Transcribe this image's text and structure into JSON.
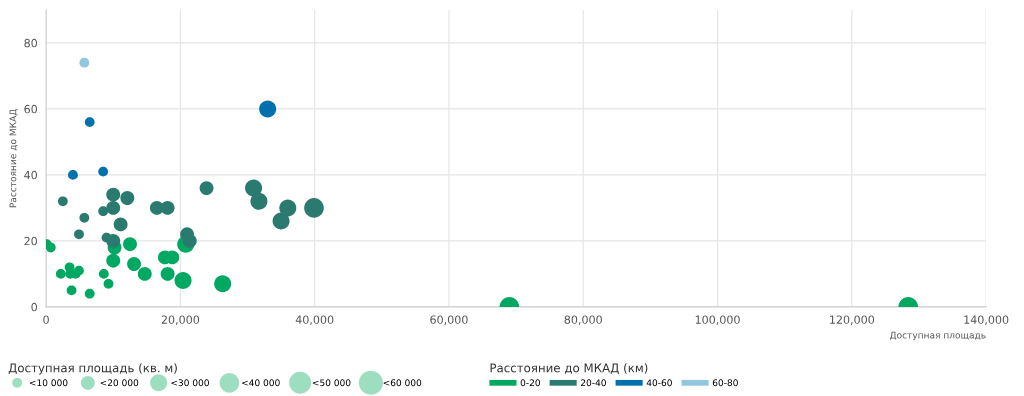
{
  "chart_data": {
    "type": "bubble",
    "xlabel": "Доступная площадь",
    "ylabel": "Расстояние до МКАД",
    "xlim": [
      0,
      140000
    ],
    "xticks": [
      {
        "value": 0,
        "label": "0"
      },
      {
        "value": 20000,
        "label": "20,000"
      },
      {
        "value": 40000,
        "label": "40,000"
      },
      {
        "value": 60000,
        "label": "60,000"
      },
      {
        "value": 80000,
        "label": "80,000"
      },
      {
        "value": 100000,
        "label": "100,000"
      },
      {
        "value": 120000,
        "label": "120,000"
      },
      {
        "value": 140000,
        "label": "140,000"
      }
    ],
    "ylim": [
      0,
      90
    ],
    "yticks": [
      0,
      20,
      40,
      60,
      80
    ],
    "grid": true,
    "legend": "bottom",
    "legend_title": "Расстояние до МКАД (км)",
    "annotations": [
      "Доступная площадь (кв. м)"
    ],
    "size_legend": [
      {
        "value": 10000,
        "label": "<10 000"
      },
      {
        "value": 20000,
        "label": "<20 000"
      },
      {
        "value": 30000,
        "label": "<30 000"
      },
      {
        "value": 40000,
        "label": "<40 000"
      },
      {
        "value": 50000,
        "label": "<50 000"
      },
      {
        "value": 60000,
        "label": "<60 000"
      }
    ],
    "series": [
      {
        "name": "0-20",
        "color": "#00a862",
        "x": [
          100,
          700,
          2200,
          3500,
          3600,
          4400,
          4900,
          3800,
          6500,
          8600,
          9300,
          10200,
          10000,
          12500,
          13100,
          14700,
          17700,
          18800,
          18100,
          20400,
          20800,
          26300,
          69000,
          128400
        ],
        "values": [
          19,
          18,
          10,
          12,
          10,
          10,
          11,
          5,
          4,
          10,
          7,
          18,
          14,
          19,
          13,
          10,
          15,
          15,
          10,
          8,
          19,
          7,
          0,
          0
        ],
        "sizes": [
          10000,
          10000,
          10000,
          10000,
          10000,
          10000,
          10000,
          10000,
          10000,
          10000,
          10000,
          20000,
          20000,
          20000,
          20000,
          20000,
          20000,
          20000,
          20000,
          30000,
          30000,
          30000,
          40000,
          40000
        ]
      },
      {
        "name": "20-40",
        "color": "#2a7a70",
        "x": [
          2500,
          5700,
          4900,
          8500,
          9000,
          10000,
          10000,
          10000,
          11100,
          12100,
          16500,
          18100,
          21000,
          21400,
          23900,
          30900,
          31700,
          35000,
          36000,
          39900
        ],
        "values": [
          32,
          27,
          22,
          29,
          21,
          34,
          30,
          20,
          25,
          33,
          30,
          30,
          22,
          20,
          36,
          36,
          32,
          26,
          30,
          30
        ],
        "sizes": [
          10000,
          10000,
          10000,
          10000,
          10000,
          20000,
          20000,
          20000,
          20000,
          20000,
          20000,
          20000,
          20000,
          20000,
          20000,
          30000,
          30000,
          30000,
          30000,
          40000
        ]
      },
      {
        "name": "40-60",
        "color": "#0071ad",
        "x": [
          6500,
          4000,
          8500,
          33000
        ],
        "values": [
          56,
          40,
          41,
          60
        ],
        "sizes": [
          10000,
          10000,
          10000,
          30000
        ]
      },
      {
        "name": "60-80",
        "color": "#92c5de",
        "x": [
          5700
        ],
        "values": [
          74
        ],
        "sizes": [
          10000
        ]
      }
    ]
  }
}
